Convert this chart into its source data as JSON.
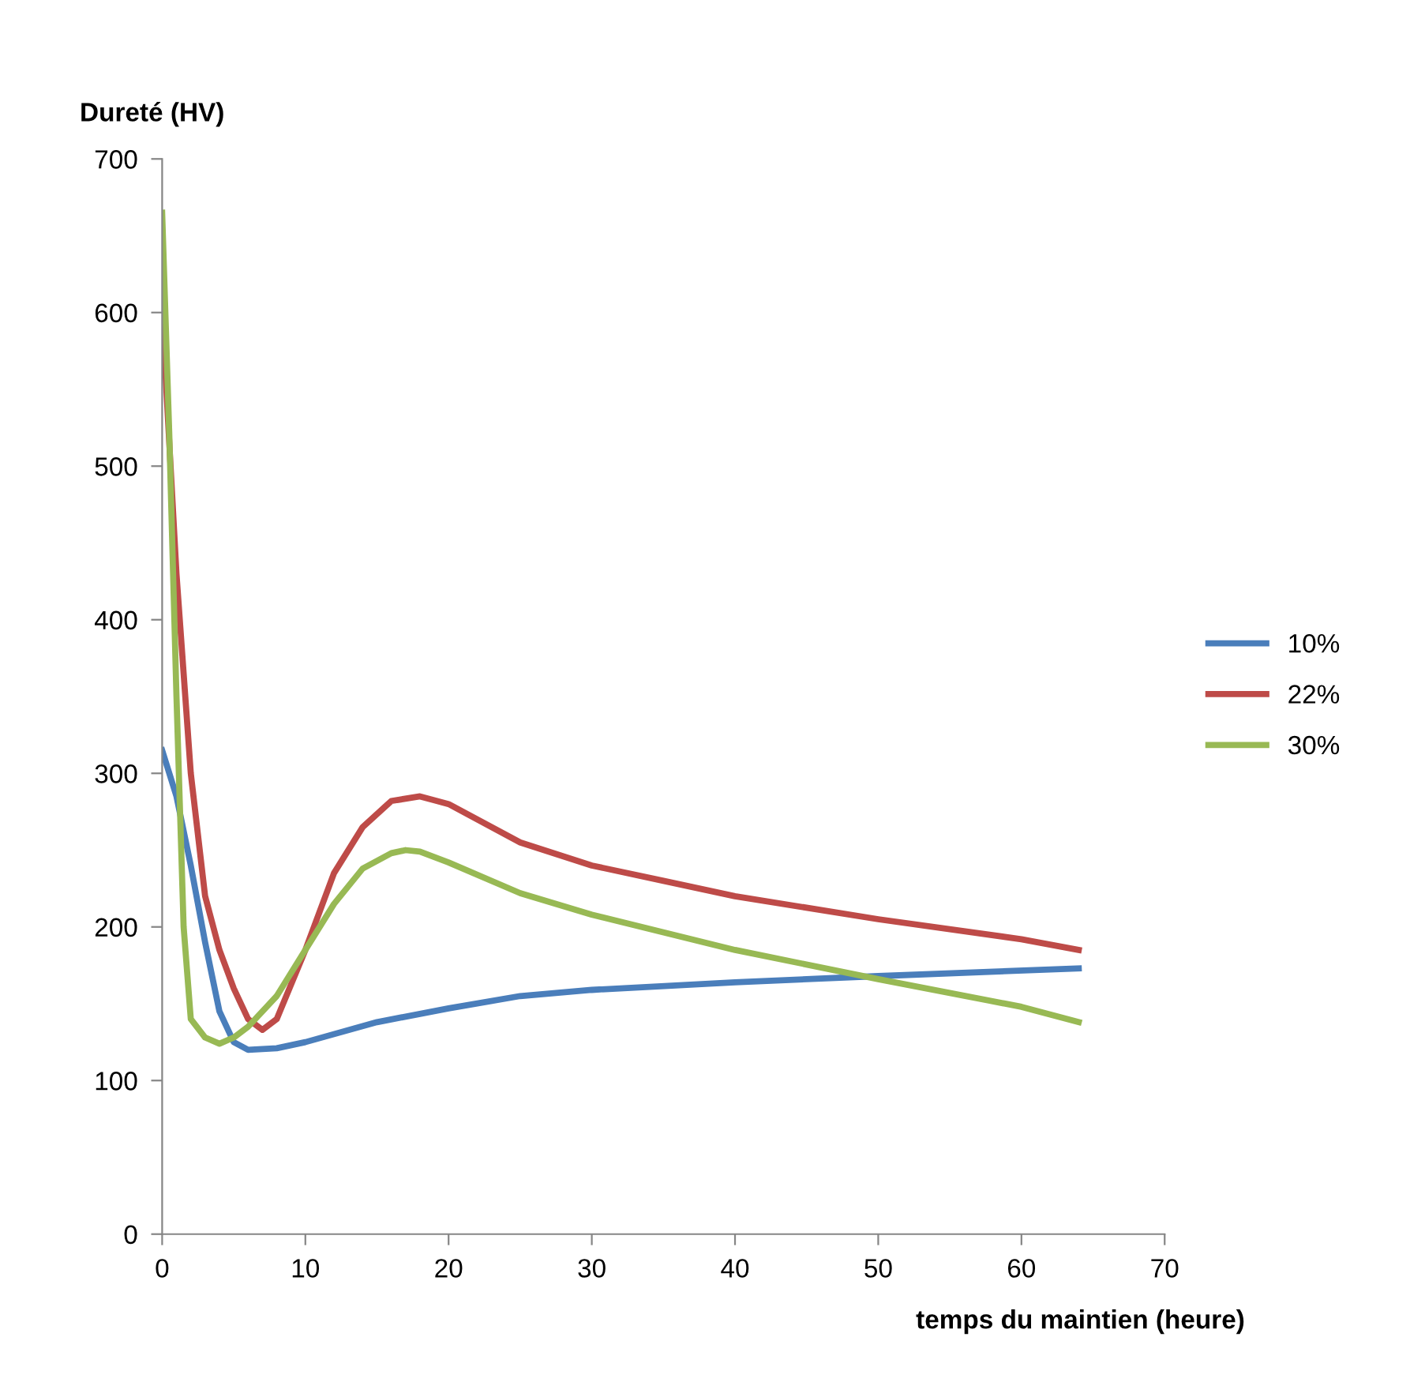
{
  "chart_data": {
    "type": "line",
    "xlabel": "temps du maintien (heure)",
    "ylabel": "Dureté (HV)",
    "xlim": [
      0,
      70
    ],
    "xticks": [
      0,
      10,
      20,
      30,
      40,
      50,
      60,
      70
    ],
    "ylim": [
      0,
      700
    ],
    "yticks": [
      0,
      100,
      200,
      300,
      400,
      500,
      600,
      700
    ],
    "grid": false,
    "legend": "right",
    "marker": "none",
    "line_style": "solid",
    "series": [
      {
        "name": "10%",
        "color": "#4a7ebb",
        "x": [
          0,
          1,
          2,
          3,
          4,
          5,
          6,
          8,
          10,
          15,
          20,
          25,
          30,
          40,
          50,
          64
        ],
        "values": [
          315,
          285,
          240,
          190,
          145,
          125,
          120,
          121,
          125,
          138,
          147,
          155,
          159,
          164,
          168,
          173
        ]
      },
      {
        "name": "22%",
        "color": "#be4b48",
        "x": [
          0,
          1,
          2,
          3,
          4,
          5,
          6,
          7,
          8,
          10,
          12,
          14,
          16,
          18,
          20,
          25,
          30,
          35,
          40,
          50,
          60,
          64
        ],
        "values": [
          600,
          430,
          300,
          220,
          185,
          160,
          140,
          133,
          140,
          185,
          235,
          265,
          282,
          285,
          280,
          255,
          240,
          230,
          220,
          205,
          192,
          185
        ]
      },
      {
        "name": "30%",
        "color": "#98b954",
        "x": [
          0,
          0.5,
          1,
          1.5,
          2,
          3,
          4,
          5,
          6,
          8,
          10,
          12,
          14,
          16,
          17,
          18,
          20,
          25,
          30,
          40,
          50,
          60,
          64
        ],
        "values": [
          665,
          520,
          350,
          200,
          140,
          128,
          124,
          128,
          135,
          155,
          185,
          215,
          238,
          248,
          250,
          249,
          242,
          222,
          208,
          185,
          166,
          148,
          138
        ]
      }
    ]
  }
}
